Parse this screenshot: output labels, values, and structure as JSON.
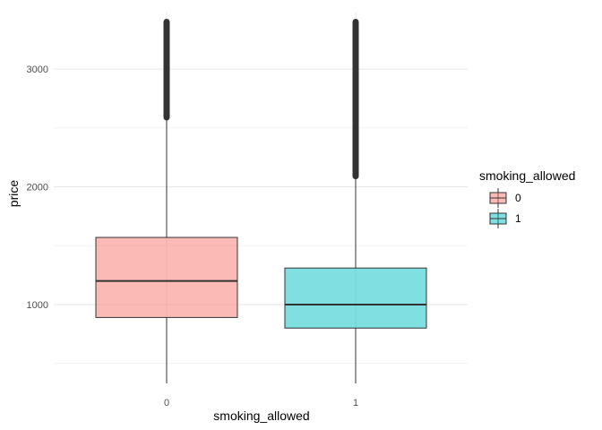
{
  "chart_data": {
    "type": "boxplot",
    "title": "",
    "xlabel": "smoking_allowed",
    "ylabel": "price",
    "categories": [
      "0",
      "1"
    ],
    "ylim": [
      330,
      3480
    ],
    "yticks": [
      1000,
      2000,
      3000
    ],
    "grid": true,
    "legend": {
      "title": "smoking_allowed",
      "position": "right",
      "entries": [
        "0",
        "1"
      ]
    },
    "colors": {
      "0": "#F8766D",
      "1": "#00BFC4"
    },
    "boxes": [
      {
        "category": "0",
        "min": 330,
        "q1": 890,
        "median": 1200,
        "q3": 1570,
        "whisker_high": 2590,
        "outliers_from": 2590,
        "outliers_to": 3400
      },
      {
        "category": "1",
        "min": 330,
        "q1": 800,
        "median": 1000,
        "q3": 1310,
        "whisker_high": 2090,
        "outliers_from": 2090,
        "outliers_to": 3400
      }
    ]
  }
}
